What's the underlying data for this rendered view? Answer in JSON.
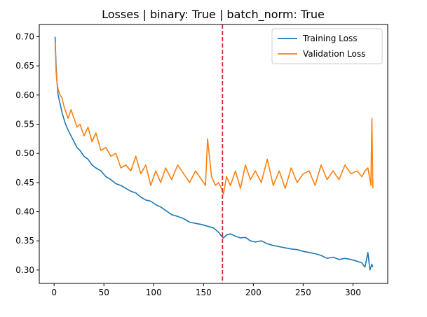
{
  "chart_data": {
    "type": "line",
    "title": "Losses | binary: True | batch_norm: True",
    "xlabel": "",
    "ylabel": "",
    "xlim": [
      -14.9,
      334.9
    ],
    "ylim": [
      0.277,
      0.721
    ],
    "x_ticks": [
      0,
      50,
      100,
      150,
      200,
      250,
      300
    ],
    "y_ticks": [
      0.3,
      0.35,
      0.4,
      0.45,
      0.5,
      0.55,
      0.6,
      0.65,
      0.7
    ],
    "x_tick_labels": [
      "0",
      "50",
      "100",
      "150",
      "200",
      "250",
      "300"
    ],
    "y_tick_labels": [
      "0.30",
      "0.35",
      "0.40",
      "0.45",
      "0.50",
      "0.55",
      "0.60",
      "0.65",
      "0.70"
    ],
    "grid": false,
    "legend_position": "top-right",
    "vline": {
      "x": 169,
      "color": "#d62728",
      "style": "dashed"
    },
    "series": [
      {
        "name": "Training Loss",
        "color": "#1f77b4",
        "x": [
          1,
          2,
          3,
          4,
          6,
          8,
          10,
          12,
          14,
          17,
          20,
          23,
          26,
          30,
          34,
          38,
          42,
          47,
          52,
          57,
          62,
          67,
          72,
          77,
          82,
          87,
          92,
          97,
          102,
          107,
          112,
          118,
          124,
          130,
          136,
          142,
          148,
          154,
          160,
          165,
          168,
          170,
          173,
          177,
          182,
          187,
          192,
          197,
          202,
          208,
          214,
          220,
          226,
          232,
          238,
          244,
          250,
          256,
          262,
          268,
          274,
          280,
          286,
          292,
          298,
          304,
          309,
          312,
          315,
          317,
          319,
          320
        ],
        "y": [
          0.7,
          0.65,
          0.62,
          0.6,
          0.585,
          0.57,
          0.558,
          0.548,
          0.54,
          0.53,
          0.52,
          0.51,
          0.505,
          0.495,
          0.49,
          0.48,
          0.475,
          0.47,
          0.46,
          0.455,
          0.448,
          0.445,
          0.44,
          0.435,
          0.432,
          0.425,
          0.42,
          0.418,
          0.412,
          0.408,
          0.402,
          0.395,
          0.392,
          0.388,
          0.382,
          0.38,
          0.378,
          0.375,
          0.372,
          0.365,
          0.358,
          0.355,
          0.36,
          0.362,
          0.358,
          0.355,
          0.356,
          0.35,
          0.348,
          0.35,
          0.345,
          0.342,
          0.34,
          0.338,
          0.336,
          0.335,
          0.332,
          0.33,
          0.328,
          0.325,
          0.32,
          0.322,
          0.318,
          0.32,
          0.318,
          0.315,
          0.312,
          0.305,
          0.33,
          0.3,
          0.31,
          0.305
        ]
      },
      {
        "name": "Validation Loss",
        "color": "#ff7f0e",
        "x": [
          1,
          2,
          3,
          4,
          6,
          8,
          10,
          12,
          14,
          17,
          20,
          23,
          26,
          30,
          34,
          38,
          42,
          47,
          52,
          57,
          62,
          67,
          72,
          77,
          82,
          87,
          92,
          97,
          102,
          107,
          112,
          118,
          124,
          130,
          136,
          142,
          148,
          152,
          154,
          158,
          162,
          165,
          168,
          170,
          173,
          177,
          182,
          187,
          192,
          197,
          202,
          208,
          214,
          220,
          226,
          232,
          238,
          244,
          250,
          256,
          262,
          268,
          274,
          280,
          286,
          292,
          298,
          304,
          309,
          312,
          315,
          317,
          318,
          319,
          320
        ],
        "y": [
          0.69,
          0.64,
          0.62,
          0.61,
          0.6,
          0.595,
          0.58,
          0.57,
          0.56,
          0.575,
          0.56,
          0.545,
          0.55,
          0.53,
          0.545,
          0.52,
          0.535,
          0.505,
          0.51,
          0.495,
          0.5,
          0.475,
          0.48,
          0.47,
          0.495,
          0.465,
          0.48,
          0.445,
          0.47,
          0.45,
          0.475,
          0.455,
          0.48,
          0.465,
          0.45,
          0.47,
          0.455,
          0.445,
          0.525,
          0.46,
          0.445,
          0.45,
          0.44,
          0.43,
          0.46,
          0.445,
          0.47,
          0.44,
          0.48,
          0.455,
          0.47,
          0.45,
          0.49,
          0.445,
          0.47,
          0.44,
          0.475,
          0.45,
          0.465,
          0.47,
          0.445,
          0.48,
          0.455,
          0.47,
          0.455,
          0.48,
          0.465,
          0.47,
          0.46,
          0.47,
          0.475,
          0.455,
          0.445,
          0.56,
          0.44
        ]
      }
    ]
  }
}
